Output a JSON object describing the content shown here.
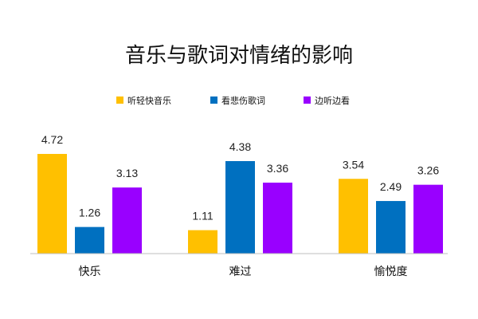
{
  "chart_data": {
    "type": "bar",
    "title": "音乐与歌词对情绪的影响",
    "categories": [
      "快乐",
      "难过",
      "愉悦度"
    ],
    "series": [
      {
        "name": "听轻快音乐",
        "values": [
          4.72,
          1.11,
          3.54
        ]
      },
      {
        "name": "看悲伤歌词",
        "values": [
          1.26,
          4.38,
          2.49
        ]
      },
      {
        "name": "边听边看",
        "values": [
          3.13,
          3.36,
          3.26
        ]
      }
    ],
    "ylim": [
      0,
      5
    ],
    "grid": false,
    "legend_position": "top-center",
    "colors": [
      "#FFC000",
      "#0070C0",
      "#9900FF"
    ]
  }
}
